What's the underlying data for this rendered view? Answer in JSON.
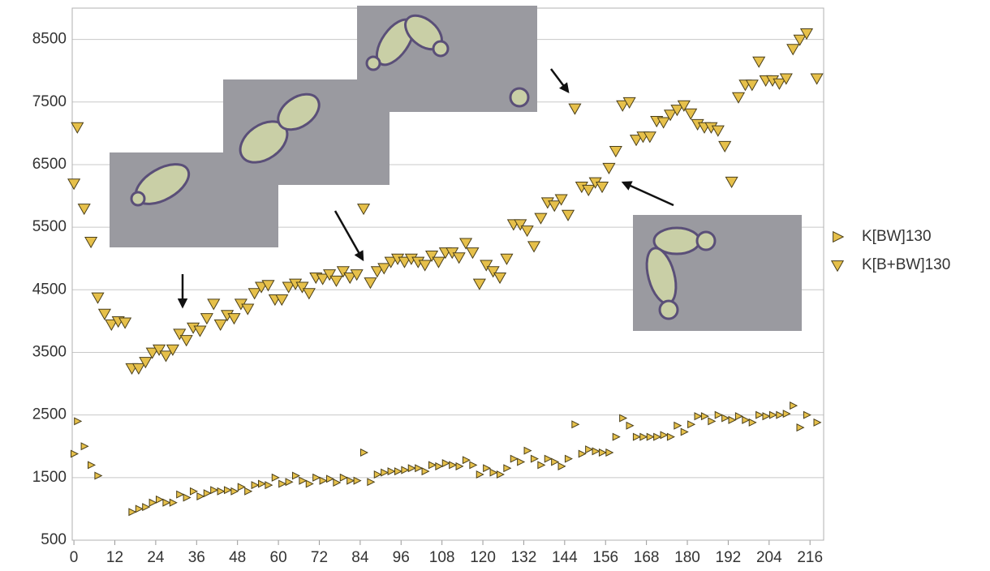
{
  "chart_data": {
    "type": "scatter",
    "x": [
      0,
      1,
      3,
      5,
      7,
      9,
      11,
      13,
      15,
      17,
      19,
      21,
      23,
      25,
      27,
      29,
      31,
      33,
      35,
      37,
      39,
      41,
      43,
      45,
      47,
      49,
      51,
      53,
      55,
      57,
      59,
      61,
      63,
      65,
      67,
      69,
      71,
      73,
      75,
      77,
      79,
      81,
      83,
      85,
      87,
      89,
      91,
      93,
      95,
      97,
      99,
      101,
      103,
      105,
      107,
      109,
      111,
      113,
      115,
      117,
      119,
      121,
      123,
      125,
      127,
      129,
      131,
      133,
      135,
      137,
      139,
      141,
      143,
      145,
      147,
      149,
      151,
      153,
      155,
      157,
      159,
      161,
      163,
      165,
      167,
      169,
      171,
      173,
      175,
      177,
      179,
      181,
      183,
      185,
      187,
      189,
      191,
      193,
      195,
      197,
      199,
      201,
      203,
      205,
      207,
      209,
      211,
      213,
      215,
      218
    ],
    "series": [
      {
        "name": "K[BW]130",
        "color": "#e6c04a",
        "values": [
          1880,
          2400,
          2000,
          1700,
          1530,
          null,
          null,
          null,
          null,
          950,
          1000,
          1030,
          1100,
          1150,
          1100,
          1100,
          1230,
          1180,
          1280,
          1200,
          1250,
          1300,
          1280,
          1300,
          1280,
          1350,
          1280,
          1380,
          1400,
          1380,
          1500,
          1400,
          1430,
          1530,
          1450,
          1400,
          1500,
          1450,
          1480,
          1420,
          1500,
          1450,
          1450,
          1900,
          1430,
          1550,
          1580,
          1600,
          1600,
          1620,
          1650,
          1650,
          1600,
          1700,
          1680,
          1730,
          1700,
          1680,
          1780,
          1700,
          1550,
          1650,
          1580,
          1550,
          1650,
          1800,
          1750,
          1930,
          1800,
          1700,
          1800,
          1750,
          1680,
          1800,
          2350,
          1880,
          1950,
          1920,
          1900,
          1900,
          2150,
          2450,
          2330,
          2150,
          2150,
          2150,
          2150,
          2180,
          2150,
          2330,
          2230,
          2350,
          2480,
          2480,
          2400,
          2500,
          2450,
          2420,
          2480,
          2420,
          2380,
          2500,
          2480,
          2500,
          2500,
          2520,
          2650,
          2300,
          2500,
          2380
        ]
      },
      {
        "name": "K[B+BW]130",
        "color": "#e6c04a",
        "values": [
          6200,
          7100,
          5800,
          5270,
          4380,
          4120,
          3950,
          4000,
          3980,
          3250,
          3250,
          3350,
          3500,
          3550,
          3450,
          3550,
          3800,
          3700,
          3900,
          3850,
          4050,
          4280,
          3950,
          4100,
          4050,
          4280,
          4200,
          4450,
          4550,
          4580,
          4350,
          4350,
          4550,
          4600,
          4550,
          4450,
          4700,
          4680,
          4750,
          4650,
          4800,
          4700,
          4750,
          5800,
          4620,
          4800,
          4850,
          4950,
          5000,
          4950,
          5000,
          4950,
          4900,
          5050,
          4950,
          5100,
          5100,
          5020,
          5250,
          5100,
          4600,
          4900,
          4800,
          4700,
          5000,
          5550,
          5550,
          5450,
          5200,
          5650,
          5900,
          5850,
          5950,
          5700,
          7400,
          6150,
          6100,
          6220,
          6150,
          6450,
          6720,
          7450,
          7500,
          6900,
          6950,
          6950,
          7200,
          7180,
          7300,
          7380,
          7450,
          7320,
          7150,
          7100,
          7100,
          7050,
          6800,
          6230,
          7580,
          7780,
          7780,
          8150,
          7850,
          7850,
          7800,
          7880,
          8350,
          8500,
          8600,
          7880
        ]
      }
    ],
    "xlim": [
      -0.5,
      220
    ],
    "xticks": [
      0,
      12,
      24,
      36,
      48,
      60,
      72,
      84,
      96,
      108,
      120,
      132,
      144,
      156,
      168,
      180,
      192,
      204,
      216
    ],
    "ylim": [
      500,
      9000
    ],
    "yticks": [
      500,
      1500,
      2500,
      3500,
      4500,
      5500,
      6500,
      7500,
      8500
    ],
    "grid": true,
    "legend": "right"
  }
}
